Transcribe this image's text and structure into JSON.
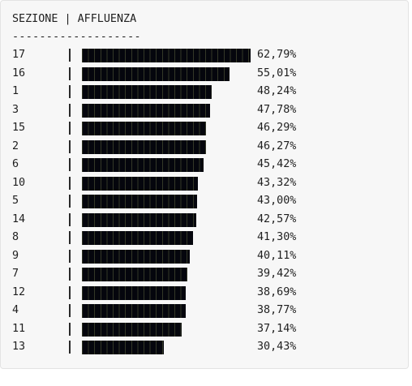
{
  "table": {
    "header": "SEZIONE | AFFLUENZA",
    "rule": "-------------------",
    "rows": [
      {
        "section": "17",
        "turnout": 62.79,
        "label": "62,79%"
      },
      {
        "section": "16",
        "turnout": 55.01,
        "label": "55,01%"
      },
      {
        "section": "1",
        "turnout": 48.24,
        "label": "48,24%"
      },
      {
        "section": "3",
        "turnout": 47.78,
        "label": "47,78%"
      },
      {
        "section": "15",
        "turnout": 46.29,
        "label": "46,29%"
      },
      {
        "section": "2",
        "turnout": 46.27,
        "label": "46,27%"
      },
      {
        "section": "6",
        "turnout": 45.42,
        "label": "45,42%"
      },
      {
        "section": "10",
        "turnout": 43.32,
        "label": "43,32%"
      },
      {
        "section": "5",
        "turnout": 43.0,
        "label": "43,00%"
      },
      {
        "section": "14",
        "turnout": 42.57,
        "label": "42,57%"
      },
      {
        "section": "8",
        "turnout": 41.3,
        "label": "41,30%"
      },
      {
        "section": "9",
        "turnout": 40.11,
        "label": "40,11%"
      },
      {
        "section": "7",
        "turnout": 39.42,
        "label": "39,42%"
      },
      {
        "section": "12",
        "turnout": 38.69,
        "label": "38,69%"
      },
      {
        "section": "4",
        "turnout": 38.77,
        "label": "38,77%"
      },
      {
        "section": "11",
        "turnout": 37.14,
        "label": "37,14%"
      },
      {
        "section": "13",
        "turnout": 30.43,
        "label": "30,43%"
      }
    ]
  },
  "colors": {
    "bar": "#05060d",
    "text": "#1f1f1f",
    "panel_background": "#f7f7f7"
  }
}
